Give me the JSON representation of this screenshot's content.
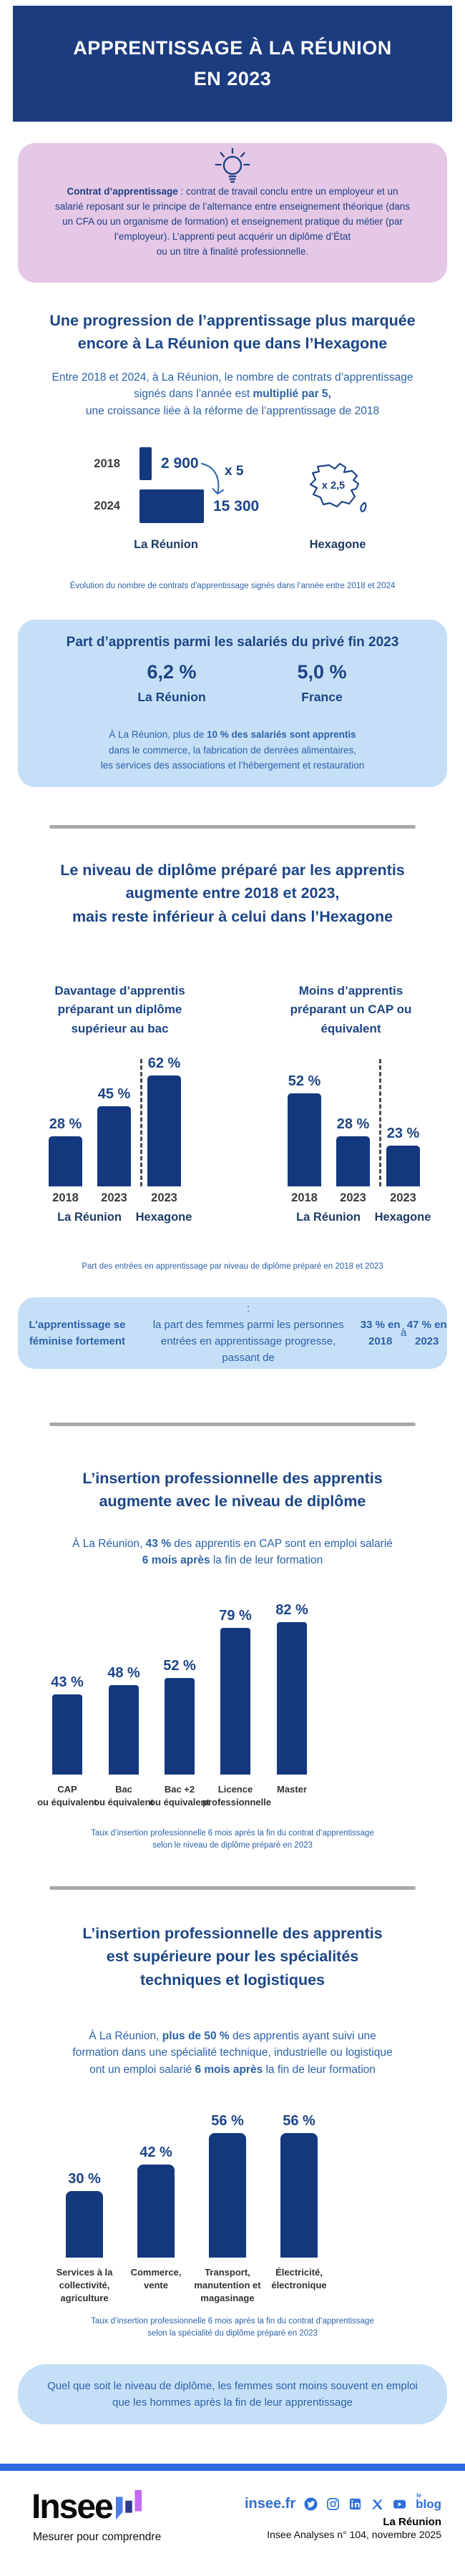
{
  "colors": {
    "header_navy": "#1c3c80",
    "bar_navy": "#14387e",
    "title_blue": "#1c4587",
    "body_blue": "#2d62a8",
    "pink_box": "#e4c8e5",
    "light_blue_box": "#c5dff7",
    "divider_gray": "#a9a9a9",
    "footer_band_blue": "#2b6be0",
    "link_blue": "#2e6fd9",
    "logo_bar_blue": "#4f7de8",
    "logo_bar_navy": "#2d3a8c",
    "logo_bar_purple": "#c36af2"
  },
  "header": {
    "title": "APPRENTISSAGE À LA RÉUNION\nEN 2023"
  },
  "definition": {
    "icon": "lightbulb",
    "text": [
      {
        "t": "Contrat d’apprentissage",
        "b": true
      },
      {
        "t": " : contrat de travail conclu entre un employeur et un\nsalarié reposant sur le principe de l’alternance entre enseignement théorique (dans\nun CFA ou un organisme de formation) et enseignement pratique du métier (par\nl’employeur). L’apprenti peut acquérir un diplôme d’État\nou un titre à finalité professionnelle.",
        "b": false
      }
    ]
  },
  "section_growth": {
    "title": "Une progression de l’apprentissage plus marquée\nencore à La Réunion que dans l’Hexagone",
    "intro": [
      {
        "t": "Entre 2018 et 2024, à La Réunion, le nombre de contrats d’apprentissage\nsignés dans l’année est ",
        "b": false
      },
      {
        "t": "multiplié par 5,",
        "b": true
      },
      {
        "t": "\nune croissance liée à la réforme de l’apprentissage de 2018",
        "b": false
      }
    ]
  },
  "section_share": {
    "title": "Part d’apprentis parmi les salariés du privé fin 2023",
    "stats": [
      {
        "value": "6,2 %",
        "label": "La Réunion"
      },
      {
        "value": "5,0 %",
        "label": "France"
      }
    ],
    "note": [
      {
        "t": "À La Réunion, plus de ",
        "b": false
      },
      {
        "t": "10 % des salariés sont apprentis",
        "b": true
      },
      {
        "t": "\ndans le commerce, la fabrication de denrées alimentaires,\nles services des associations et l’hébergement et restauration",
        "b": false
      }
    ]
  },
  "section_diploma": {
    "title": "Le niveau de diplôme préparé par les apprentis\naugmente entre 2018 et 2023,\nmais reste inférieur à celui dans l’Hexagone",
    "caption": "Part des entrées en apprentissage par niveau de diplôme préparé en 2018 et 2023"
  },
  "section_women": {
    "note": [
      {
        "t": "L’apprentissage se féminise fortement",
        "b": true
      },
      {
        "t": " :\nla part des femmes parmi les personnes entrées en apprentissage progresse,\npassant de ",
        "b": false
      },
      {
        "t": "33 % en 2018",
        "b": true
      },
      {
        "t": " à ",
        "b": false
      },
      {
        "t": "47 % en 2023",
        "b": true
      }
    ]
  },
  "section_insertion": {
    "title": "L’insertion professionnelle des apprentis\naugmente avec le niveau de diplôme",
    "intro": [
      {
        "t": "À La Réunion, ",
        "b": false
      },
      {
        "t": "43 %",
        "b": true
      },
      {
        "t": " des apprentis en CAP sont en emploi salarié\n",
        "b": false
      },
      {
        "t": "6 mois après",
        "b": true
      },
      {
        "t": " la fin de leur formation",
        "b": false
      }
    ]
  },
  "section_specialty": {
    "title": "L’insertion professionnelle des apprentis\nest supérieure pour les spécialités\ntechniques et logistiques",
    "intro": [
      {
        "t": "À La Réunion, ",
        "b": false
      },
      {
        "t": "plus de 50 %",
        "b": true
      },
      {
        "t": " des apprentis ayant suivi une\nformation dans une spécialité technique, industrielle ou logistique\nont un emploi salarié ",
        "b": false
      },
      {
        "t": "6 mois après",
        "b": true
      },
      {
        "t": " la fin de leur formation",
        "b": false
      }
    ],
    "footnote": [
      {
        "t": "Quel que soit le niveau de diplôme, les femmes sont moins souvent en emploi\nque les hommes après la fin de leur apprentissage",
        "b": false
      }
    ]
  },
  "chart_data": [
    {
      "id": "contracts-evolution",
      "type": "bar",
      "orientation": "horizontal",
      "title": "Évolution du nombre de contrats d’apprentissage signés dans l’année entre 2018 et 2024",
      "categories": [
        "2018",
        "2024"
      ],
      "values": [
        2900,
        15300
      ],
      "value_labels": [
        "2 900",
        "15 300"
      ],
      "region": "La Réunion",
      "multiplier": "x 5",
      "hexagone": {
        "label": "Hexagone",
        "multiplier": "x 2,5"
      }
    },
    {
      "id": "diploma-sup-bac",
      "type": "bar",
      "title": "Davantage d’apprentis préparant un diplôme supérieur au bac",
      "categories": [
        "2018",
        "2023",
        "2023"
      ],
      "region_labels": [
        "La Réunion",
        "Hexagone"
      ],
      "values": [
        28,
        45,
        62
      ],
      "value_labels": [
        "28 %",
        "45 %",
        "62 %"
      ],
      "ylim": [
        0,
        70
      ],
      "unit": "%"
    },
    {
      "id": "diploma-cap",
      "type": "bar",
      "title": "Moins d’apprentis préparant un CAP ou équivalent",
      "categories": [
        "2018",
        "2023",
        "2023"
      ],
      "region_labels": [
        "La Réunion",
        "Hexagone"
      ],
      "values": [
        52,
        28,
        23
      ],
      "value_labels": [
        "52 %",
        "28 %",
        "23 %"
      ],
      "ylim": [
        0,
        70
      ],
      "unit": "%"
    },
    {
      "id": "insertion-by-diploma",
      "type": "bar",
      "title": "Taux d’insertion professionnelle 6 mois après la fin du contrat d’apprentissage selon le niveau de diplôme préparé en 2023",
      "categories": [
        "CAP\nou équivalent",
        "Bac\nou équivalent",
        "Bac +2\nou équivalent",
        "Licence\nprofessionnelle",
        "Master"
      ],
      "values": [
        43,
        48,
        52,
        79,
        82
      ],
      "value_labels": [
        "43 %",
        "48 %",
        "52 %",
        "79 %",
        "82 %"
      ],
      "ylim": [
        0,
        100
      ],
      "unit": "%"
    },
    {
      "id": "insertion-by-specialty",
      "type": "bar",
      "title": "Taux d’insertion professionnelle 6 mois après la fin du contrat d’apprentissage selon la spécialité du diplôme préparé en 2023",
      "categories": [
        "Services à la\ncollectivité,\nagriculture",
        "Commerce,\nvente",
        "Transport,\nmanutention et\nmagasinage",
        "Électricité,\nélectronique"
      ],
      "values": [
        30,
        42,
        56,
        56
      ],
      "value_labels": [
        "30 %",
        "42 %",
        "56 %",
        "56 %"
      ],
      "ylim": [
        0,
        62
      ],
      "unit": "%"
    }
  ],
  "footer": {
    "site": "insee.fr",
    "icons": [
      "twitter",
      "instagram",
      "linkedin",
      "x",
      "youtube"
    ],
    "blog": "blog",
    "blog_sup": "le",
    "region": "La Réunion",
    "publication": "Insee Analyses n° 104, novembre 2025",
    "logo_text": "Insee",
    "tagline": "Mesurer pour comprendre"
  }
}
